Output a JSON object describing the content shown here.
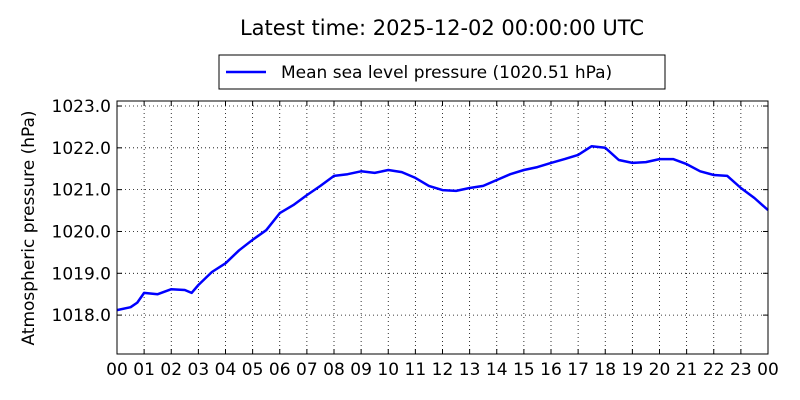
{
  "chart_data": {
    "type": "line",
    "title": "Latest time: 2025-12-02 00:00:00 UTC",
    "y_label": "Atmospheric pressure (hPa)",
    "x": [
      0,
      0.5,
      0.75,
      1,
      1.5,
      2,
      2.5,
      2.75,
      3,
      3.5,
      4,
      4.5,
      5,
      5.5,
      6,
      6.5,
      7,
      7.5,
      8,
      8.5,
      9,
      9.5,
      10,
      10.5,
      11,
      11.5,
      12,
      12.5,
      13,
      13.5,
      14,
      14.5,
      15,
      15.5,
      16,
      16.5,
      17,
      17.5,
      18,
      18.5,
      19,
      19.5,
      20,
      20.5,
      21,
      21.5,
      22,
      22.5,
      23,
      23.5,
      24
    ],
    "series": [
      {
        "name": "Mean sea level pressure (1020.51 hPa)",
        "color": "#0000ff",
        "values": [
          1018.12,
          1018.19,
          1018.3,
          1018.53,
          1018.5,
          1018.62,
          1018.6,
          1018.53,
          1018.72,
          1019.03,
          1019.24,
          1019.55,
          1019.8,
          1020.03,
          1020.44,
          1020.63,
          1020.87,
          1021.09,
          1021.33,
          1021.37,
          1021.44,
          1021.4,
          1021.47,
          1021.42,
          1021.28,
          1021.09,
          1020.99,
          1020.97,
          1021.04,
          1021.09,
          1021.23,
          1021.37,
          1021.47,
          1021.54,
          1021.64,
          1021.73,
          1021.83,
          1022.04,
          1022.0,
          1021.71,
          1021.64,
          1021.66,
          1021.73,
          1021.73,
          1021.61,
          1021.44,
          1021.35,
          1021.33,
          1021.04,
          1020.8,
          1020.51
        ]
      }
    ],
    "xlim": [
      0,
      24
    ],
    "xticks": [
      {
        "value": 0,
        "label": "00"
      },
      {
        "value": 1,
        "label": "01"
      },
      {
        "value": 2,
        "label": "02"
      },
      {
        "value": 3,
        "label": "03"
      },
      {
        "value": 4,
        "label": "04"
      },
      {
        "value": 5,
        "label": "05"
      },
      {
        "value": 6,
        "label": "06"
      },
      {
        "value": 7,
        "label": "07"
      },
      {
        "value": 8,
        "label": "08"
      },
      {
        "value": 9,
        "label": "09"
      },
      10,
      11,
      12,
      13,
      14,
      15,
      16,
      17,
      18,
      19,
      20,
      21,
      22,
      23,
      {
        "value": 24,
        "label": "00"
      }
    ],
    "ylim": [
      1017.07,
      1023.12
    ],
    "yticks": [
      {
        "value": 1018,
        "label": "1018.0"
      },
      {
        "value": 1019,
        "label": "1019.0"
      },
      {
        "value": 1020,
        "label": "1020.0"
      },
      {
        "value": 1021,
        "label": "1021.0"
      },
      {
        "value": 1022,
        "label": "1022.0"
      },
      {
        "value": 1023,
        "label": "1023.0"
      }
    ],
    "grid": true,
    "legend": "top"
  }
}
